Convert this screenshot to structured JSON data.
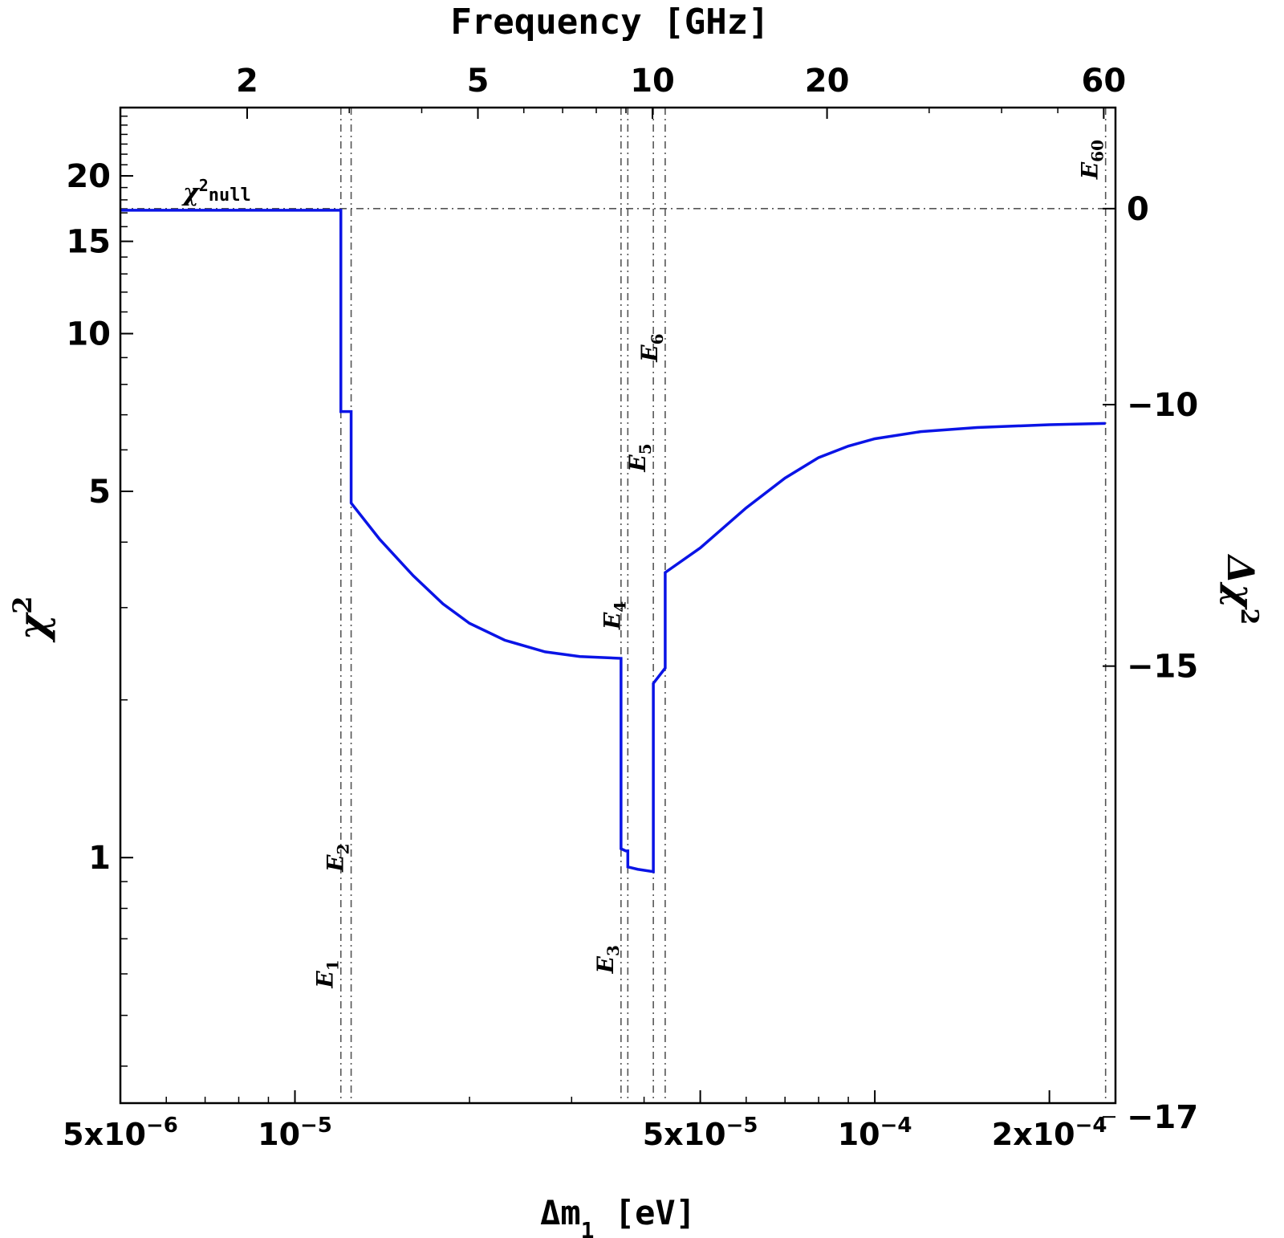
{
  "chart_data": {
    "type": "line",
    "x_scale": "log",
    "y_scale": "log",
    "xlim": [
      5e-06,
      0.00026
    ],
    "ylim": [
      0.34,
      27
    ],
    "xlabel_prefix": "Δm",
    "xlabel_sub": "1",
    "xlabel_suffix": " [eV]",
    "ylabel_base": "χ",
    "ylabel_sup": "2",
    "top_xlabel": "Frequency [GHz]",
    "right_ylabel_base": "Δχ",
    "right_ylabel_sup": "2",
    "x_ticks": [
      {
        "value": 5e-06,
        "mant": "5x10",
        "exp": "−6"
      },
      {
        "value": 1e-05,
        "mant": "10",
        "exp": "−5"
      },
      {
        "value": 5e-05,
        "mant": "5x10",
        "exp": "−5"
      },
      {
        "value": 0.0001,
        "mant": "10",
        "exp": "−4"
      },
      {
        "value": 0.0002,
        "mant": "2x10",
        "exp": "−4"
      }
    ],
    "y_ticks": [
      {
        "value": 1,
        "label": "1"
      },
      {
        "value": 5,
        "label": "5"
      },
      {
        "value": 10,
        "label": "10"
      },
      {
        "value": 15,
        "label": "15"
      },
      {
        "value": 20,
        "label": "20"
      }
    ],
    "top_ticks": [
      {
        "ghz": 2,
        "label": "2"
      },
      {
        "ghz": 5,
        "label": "5"
      },
      {
        "ghz": 10,
        "label": "10"
      },
      {
        "ghz": 20,
        "label": "20"
      },
      {
        "ghz": 60,
        "label": "60"
      }
    ],
    "right_ticks": [
      {
        "delta": 0,
        "label": "0"
      },
      {
        "delta": -10,
        "label": "−10"
      },
      {
        "delta": -15,
        "label": "−15"
      },
      {
        "delta": -17,
        "label": "−17"
      }
    ],
    "chi2_null": 17.32,
    "null_label_base": "χ",
    "null_label_sup": "2",
    "null_label_sub": "null",
    "thresholds": [
      {
        "label": "E",
        "sub": "1",
        "x": 1.2e-05,
        "label_y": 0.6
      },
      {
        "label": "E",
        "sub": "2",
        "x": 1.25e-05,
        "label_y": 1.0
      },
      {
        "label": "E",
        "sub": "3",
        "x": 3.65e-05,
        "label_y": 0.64
      },
      {
        "label": "E",
        "sub": "4",
        "x": 3.75e-05,
        "label_y": 2.9
      },
      {
        "label": "E",
        "sub": "5",
        "x": 4.15e-05,
        "label_y": 5.8
      },
      {
        "label": "E",
        "sub": "6",
        "x": 4.35e-05,
        "label_y": 9.4
      },
      {
        "label": "E",
        "sub": "60",
        "x": 0.00025,
        "label_y": 21.5
      }
    ],
    "series": [
      {
        "color": "#0a14e6",
        "points": [
          [
            5e-06,
            17.2
          ],
          [
            1.2e-05,
            17.2
          ],
          [
            1.2e-05,
            7.1
          ],
          [
            1.25e-05,
            7.1
          ],
          [
            1.25e-05,
            4.75
          ],
          [
            1.4e-05,
            4.05
          ],
          [
            1.6e-05,
            3.45
          ],
          [
            1.8e-05,
            3.05
          ],
          [
            2e-05,
            2.8
          ],
          [
            2.3e-05,
            2.6
          ],
          [
            2.7e-05,
            2.47
          ],
          [
            3.1e-05,
            2.42
          ],
          [
            3.65e-05,
            2.4
          ],
          [
            3.65e-05,
            1.04
          ],
          [
            3.72e-05,
            1.03
          ],
          [
            3.75e-05,
            1.03
          ],
          [
            3.75e-05,
            0.96
          ],
          [
            3.9e-05,
            0.95
          ],
          [
            4.15e-05,
            0.94
          ],
          [
            4.15e-05,
            2.15
          ],
          [
            4.35e-05,
            2.3
          ],
          [
            4.35e-05,
            3.5
          ],
          [
            5e-05,
            3.9
          ],
          [
            6e-05,
            4.65
          ],
          [
            7e-05,
            5.3
          ],
          [
            8e-05,
            5.8
          ],
          [
            9e-05,
            6.1
          ],
          [
            0.0001,
            6.3
          ],
          [
            0.00012,
            6.5
          ],
          [
            0.00015,
            6.62
          ],
          [
            0.0002,
            6.7
          ],
          [
            0.00025,
            6.74
          ]
        ]
      }
    ]
  }
}
